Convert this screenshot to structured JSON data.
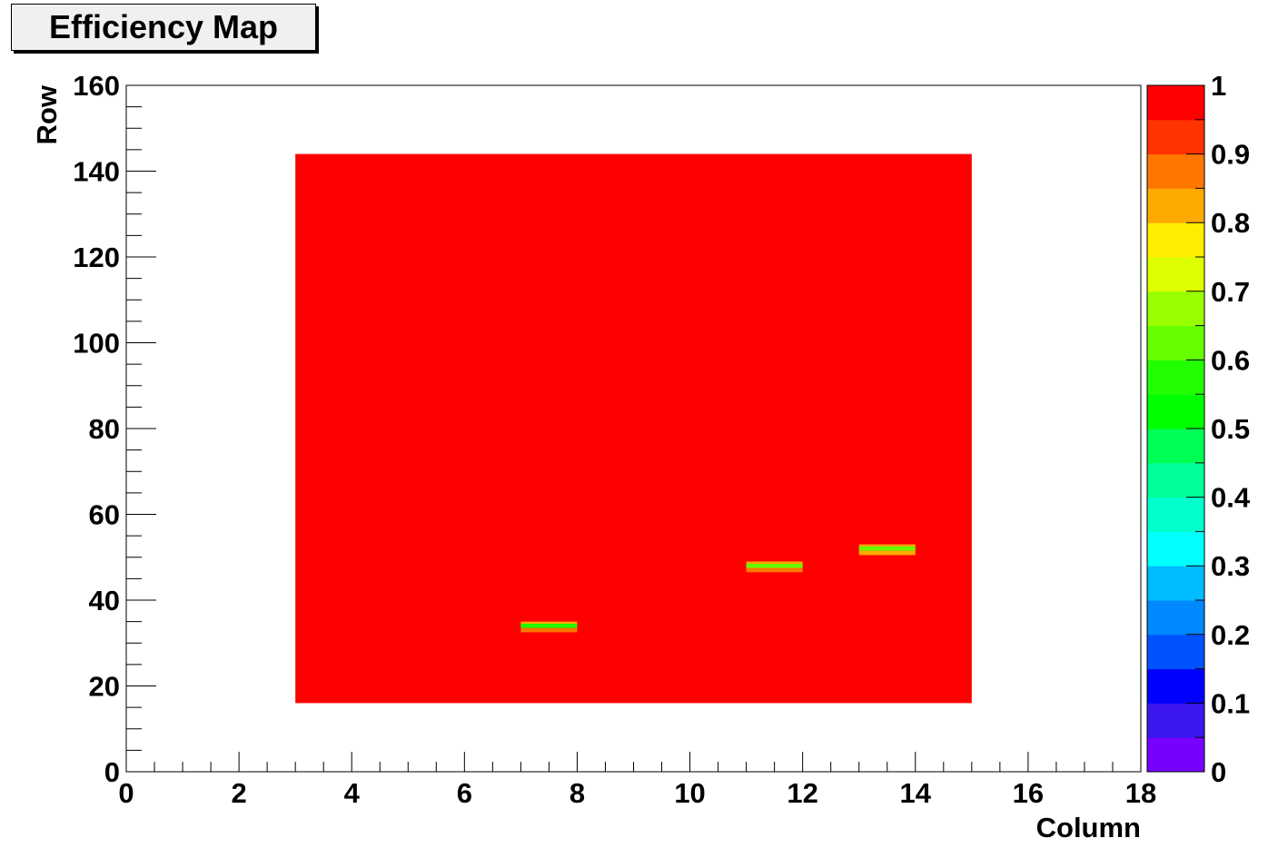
{
  "chart_data": {
    "type": "heatmap",
    "title": "Efficiency Map",
    "xlabel": "Column",
    "ylabel": "Row",
    "xlim": [
      0,
      18
    ],
    "ylim": [
      0,
      160
    ],
    "zlim": [
      0,
      1
    ],
    "x_ticks": [
      0,
      2,
      4,
      6,
      8,
      10,
      12,
      14,
      16,
      18
    ],
    "y_ticks": [
      0,
      20,
      40,
      60,
      80,
      100,
      120,
      140,
      160
    ],
    "z_ticks": [
      0,
      0.1,
      0.2,
      0.3,
      0.4,
      0.5,
      0.6,
      0.7,
      0.8,
      0.9,
      1
    ],
    "x_tick_labels": [
      "0",
      "2",
      "4",
      "6",
      "8",
      "10",
      "12",
      "14",
      "16",
      "18"
    ],
    "y_tick_labels": [
      "0",
      "20",
      "40",
      "60",
      "80",
      "100",
      "120",
      "140",
      "160"
    ],
    "z_tick_labels": [
      "0",
      "0.1",
      "0.2",
      "0.3",
      "0.4",
      "0.5",
      "0.6",
      "0.7",
      "0.8",
      "0.9",
      "1"
    ],
    "palette": [
      "#7700ff",
      "#3b16ee",
      "#0000ff",
      "#0052ff",
      "#0088ff",
      "#00bbff",
      "#00ffff",
      "#00ffcc",
      "#00ff99",
      "#00ff55",
      "#00ff00",
      "#22ff00",
      "#66ff00",
      "#99ff00",
      "#ddff00",
      "#ffee00",
      "#ffaa00",
      "#ff7700",
      "#ff3300",
      "#ff0000"
    ],
    "cells": [
      {
        "x0": 3,
        "x1": 15,
        "y0": 16,
        "y1": 144,
        "z": 1.0
      },
      {
        "x0": 7,
        "x1": 8,
        "y0": 33.5,
        "y1": 34.5,
        "z": 0.55
      },
      {
        "x0": 7,
        "x1": 8,
        "y0": 34.5,
        "y1": 35,
        "z": 0.82
      },
      {
        "x0": 7,
        "x1": 8,
        "y0": 32.5,
        "y1": 33.5,
        "z": 0.85
      },
      {
        "x0": 11,
        "x1": 12,
        "y0": 47.5,
        "y1": 48.5,
        "z": 0.6
      },
      {
        "x0": 11,
        "x1": 12,
        "y0": 48.5,
        "y1": 49,
        "z": 0.82
      },
      {
        "x0": 11,
        "x1": 12,
        "y0": 46.5,
        "y1": 47.5,
        "z": 0.88
      },
      {
        "x0": 13,
        "x1": 14,
        "y0": 51.5,
        "y1": 52.5,
        "z": 0.6
      },
      {
        "x0": 13,
        "x1": 14,
        "y0": 52.5,
        "y1": 53,
        "z": 0.82
      },
      {
        "x0": 13,
        "x1": 14,
        "y0": 50.5,
        "y1": 51.5,
        "z": 0.8
      }
    ]
  }
}
